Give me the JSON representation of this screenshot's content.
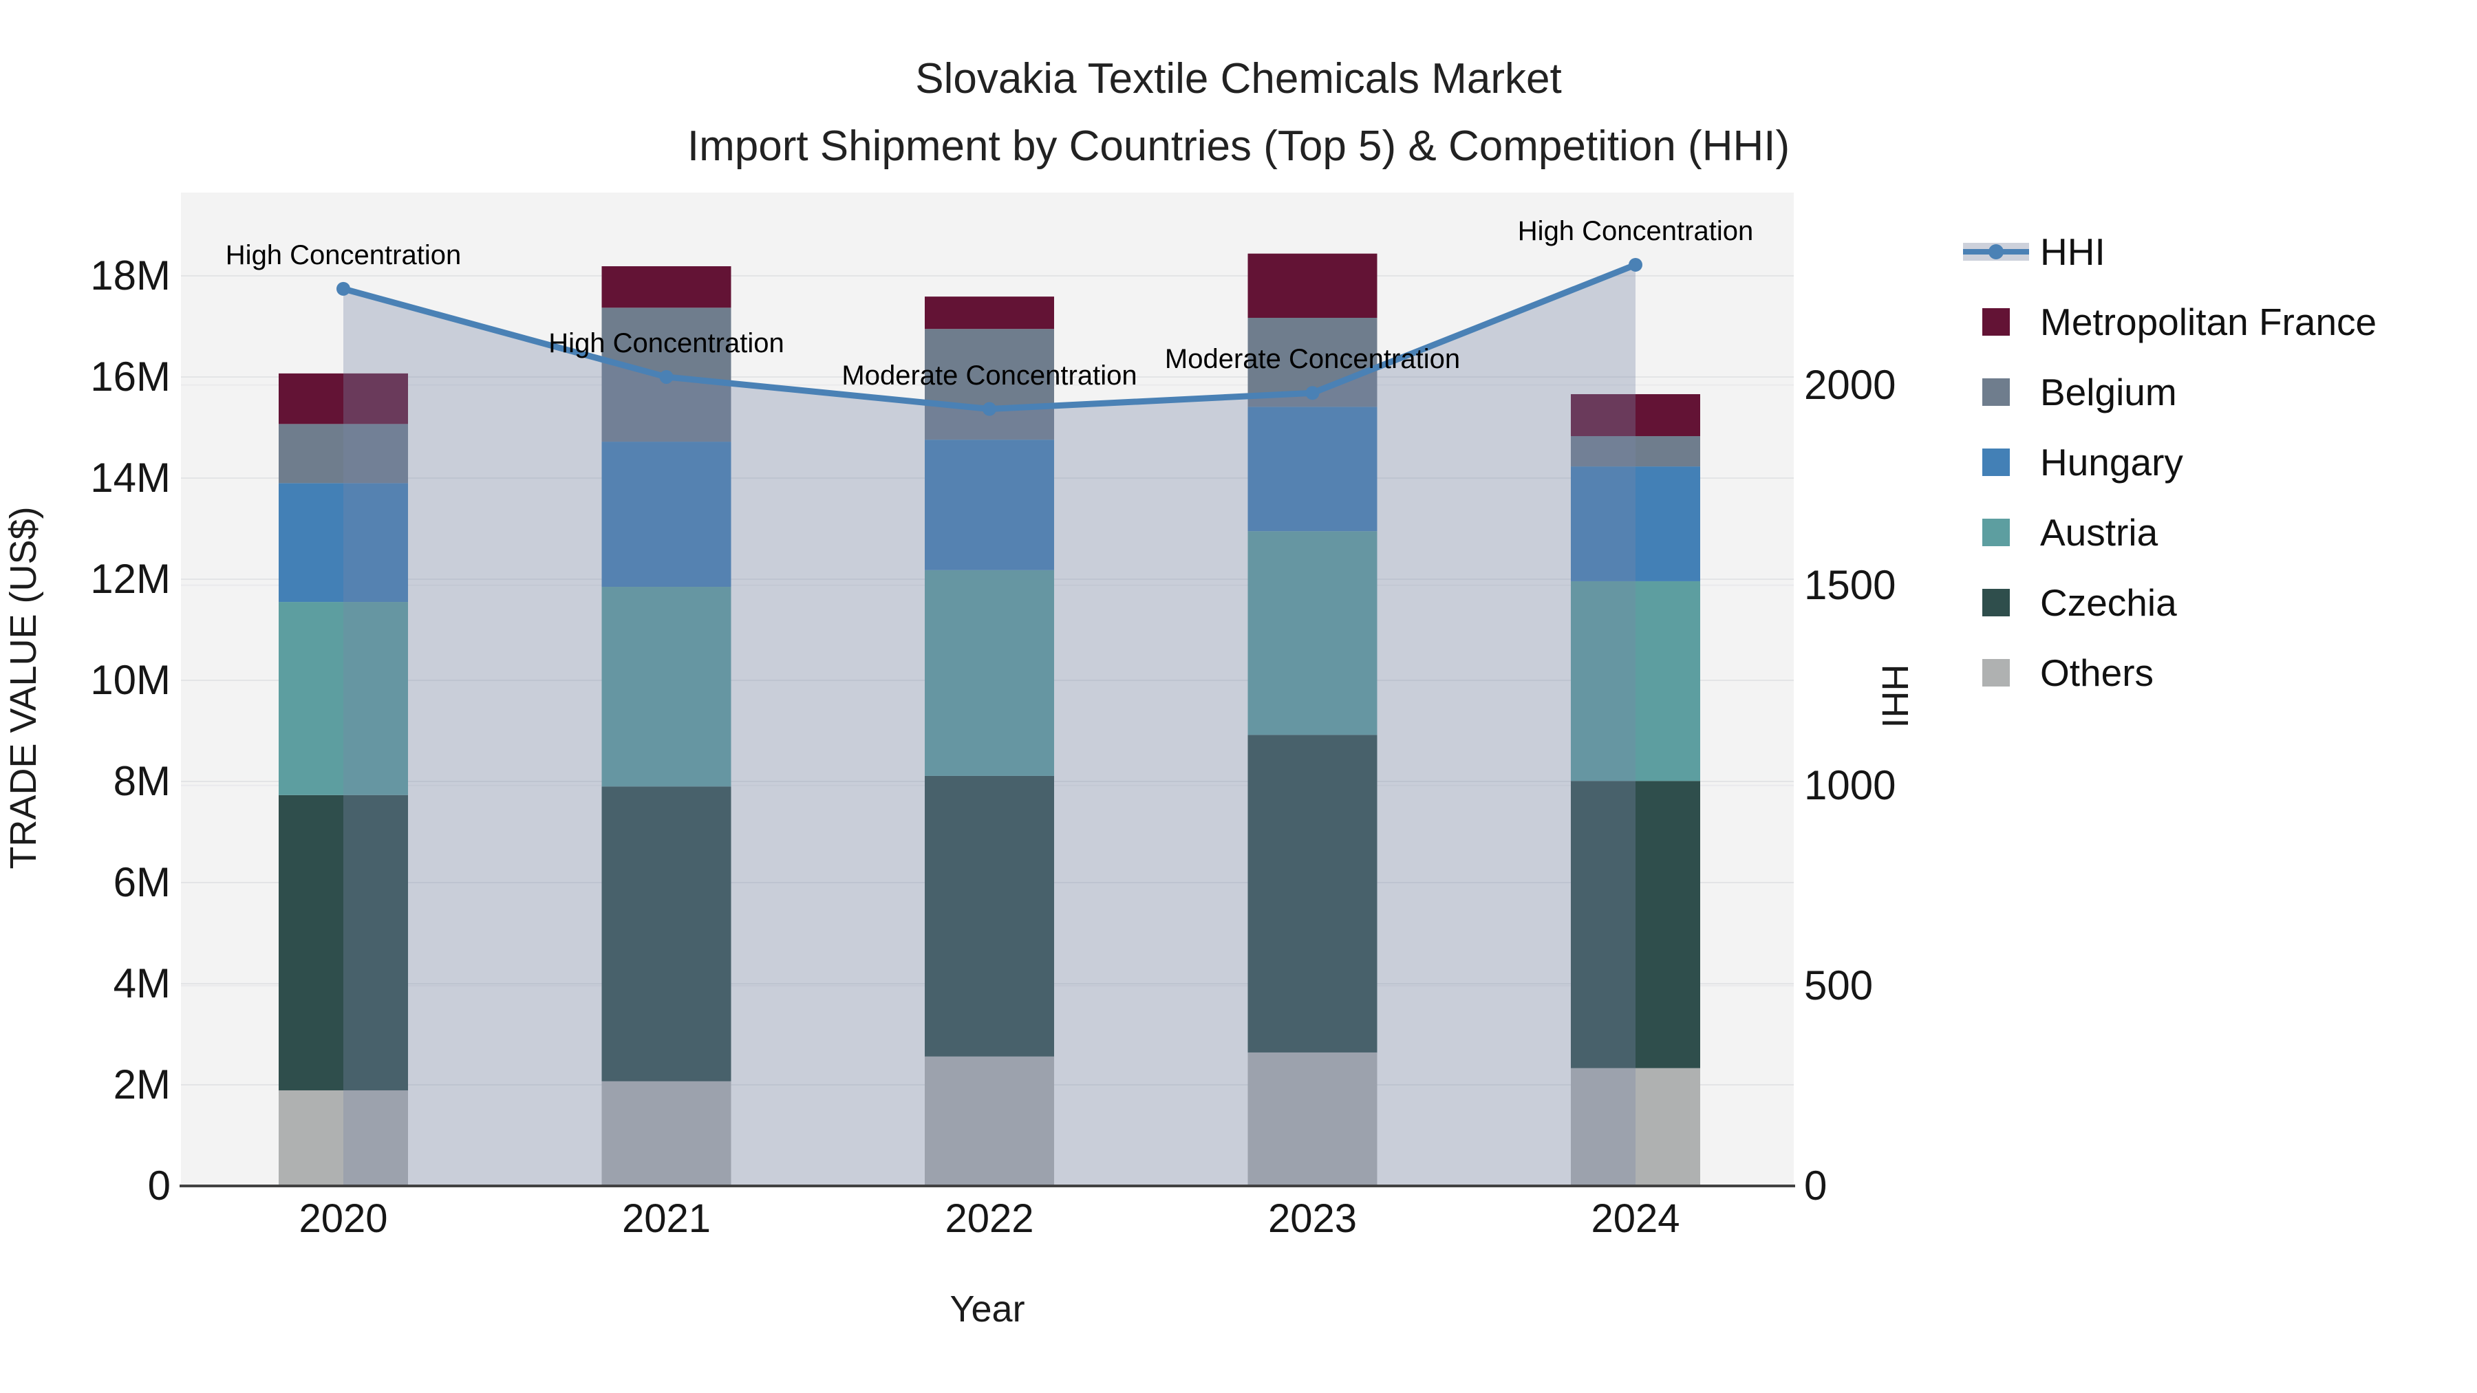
{
  "title": {
    "line1": "Slovakia Textile Chemicals Market",
    "line2": "Import Shipment by Countries (Top 5) & Competition (HHI)"
  },
  "chart_data": {
    "type": "bar-stacked+line",
    "title": "Slovakia Textile Chemicals Market Import Shipment by Countries (Top 5) & Competition (HHI)",
    "categories": [
      "2020",
      "2021",
      "2022",
      "2023",
      "2024"
    ],
    "value_unit": "M US$",
    "stack_order_bottom_to_top": [
      "Others",
      "Czechia",
      "Austria",
      "Hungary",
      "Belgium",
      "Metropolitan France"
    ],
    "series": [
      {
        "name": "Metropolitan France",
        "color": "#631335",
        "values": [
          1.0,
          0.82,
          0.64,
          1.27,
          0.83
        ]
      },
      {
        "name": "Belgium",
        "color": "#6F7D8D",
        "values": [
          1.17,
          2.65,
          2.19,
          1.76,
          0.6
        ]
      },
      {
        "name": "Hungary",
        "color": "#4380B6",
        "values": [
          2.35,
          2.87,
          2.58,
          2.46,
          2.27
        ]
      },
      {
        "name": "Austria",
        "color": "#5D9EA0",
        "values": [
          3.82,
          3.95,
          4.07,
          4.03,
          3.95
        ]
      },
      {
        "name": "Czechia",
        "color": "#2F4E4C",
        "values": [
          5.84,
          5.83,
          5.55,
          6.28,
          5.68
        ]
      },
      {
        "name": "Others",
        "color": "#AFB1B1",
        "values": [
          1.89,
          2.07,
          2.56,
          2.64,
          2.33
        ]
      }
    ],
    "totals": [
      16.07,
      18.19,
      17.59,
      18.44,
      15.66
    ],
    "hhi": {
      "name": "HHI",
      "values": [
        2240,
        2020,
        1940,
        1980,
        2300
      ],
      "line_color": "#4A81B5",
      "fill_color": "rgba(120,134,167,0.34)"
    },
    "annotations": [
      "High Concentration",
      "High Concentration",
      "Moderate Concentration",
      "Moderate Concentration",
      "High Concentration"
    ],
    "x_label": "Year",
    "y_left": {
      "label": "TRADE VALUE (US$)",
      "ticks": [
        "0",
        "2M",
        "4M",
        "6M",
        "8M",
        "10M",
        "12M",
        "14M",
        "16M",
        "18M"
      ],
      "tick_values": [
        0,
        2,
        4,
        6,
        8,
        10,
        12,
        14,
        16,
        18
      ],
      "range": [
        0,
        19.6
      ]
    },
    "y_right": {
      "label": "HHI",
      "ticks": [
        "0",
        "500",
        "1000",
        "1500",
        "2000"
      ],
      "tick_values": [
        0,
        500,
        1000,
        1500,
        2000
      ],
      "range": [
        0,
        2480
      ]
    },
    "legend": [
      "HHI",
      "Metropolitan France",
      "Belgium",
      "Hungary",
      "Austria",
      "Czechia",
      "Others"
    ],
    "grid": true,
    "legend_position": "right",
    "plot_bg": "#f3f3f3",
    "grid_color": "#e3e4e6",
    "axisline_color": "#424242"
  }
}
